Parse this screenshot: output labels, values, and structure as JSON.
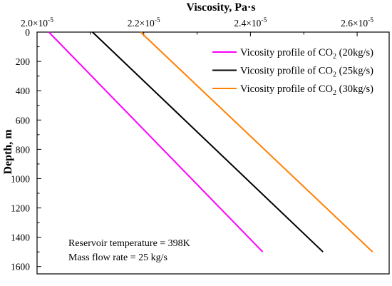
{
  "chart_data": {
    "type": "line",
    "title": "",
    "xlabel": "Viscosity, Pa·s",
    "ylabel": "Depth, m",
    "xaxis_position": "top",
    "yaxis_inverted": true,
    "xlim": [
      2e-05,
      2.66e-05
    ],
    "ylim": [
      0,
      1650
    ],
    "x_ticks": [
      {
        "value": 2e-05,
        "mantissa": "2.0×10",
        "exp": "-5"
      },
      {
        "value": 2.2e-05,
        "mantissa": "2.2×10",
        "exp": "-5"
      },
      {
        "value": 2.4e-05,
        "mantissa": "2.4×10",
        "exp": "-5"
      },
      {
        "value": 2.6e-05,
        "mantissa": "2.6×10",
        "exp": "-5"
      }
    ],
    "y_ticks": [
      0,
      200,
      400,
      600,
      800,
      1000,
      1200,
      1400,
      1600
    ],
    "grid": false,
    "legend_position": "top-right",
    "series": [
      {
        "name_prefix": "Vicosity profile of CO",
        "name_sub": "2",
        "name_suffix": " (20kg/s)",
        "color": "#ff00ff",
        "x": [
          2.022e-05,
          2.423e-05
        ],
        "y": [
          0,
          1500
        ]
      },
      {
        "name_prefix": "Vicosity profile of CO",
        "name_sub": "2",
        "name_suffix": " (25kg/s)",
        "color": "#000000",
        "x": [
          2.104e-05,
          2.536e-05
        ],
        "y": [
          0,
          1500
        ]
      },
      {
        "name_prefix": "Vicosity profile of CO",
        "name_sub": "2",
        "name_suffix": " (30kg/s)",
        "color": "#ff8000",
        "x": [
          2.194e-05,
          2.629e-05
        ],
        "y": [
          0,
          1500
        ]
      }
    ],
    "annotations": [
      "Reservoir temperature = 398K",
      "Mass flow rate  = 25 kg/s"
    ]
  }
}
